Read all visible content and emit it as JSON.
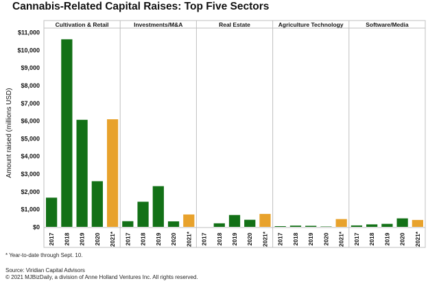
{
  "chart_data": {
    "type": "bar",
    "title": "Cannabis-Related Capital Raises: Top Five Sectors",
    "ylabel": "Amount raised (millions USD)",
    "ylim": [
      0,
      11000
    ],
    "yticks": [
      "$0",
      "$1,000",
      "$2,000",
      "$3,000",
      "$4,000",
      "$5,000",
      "$6,000",
      "$7,000",
      "$8,000",
      "$9,000",
      "$10,000",
      "$11,000"
    ],
    "categories": [
      "2017",
      "2018",
      "2019",
      "2020",
      "2021*"
    ],
    "grid": false,
    "colors": {
      "full_year": "#137117",
      "ytd": "#e8a22c"
    },
    "panels": [
      {
        "name": "Cultivation & Retail",
        "values": [
          1650,
          10600,
          6050,
          2580,
          6080
        ]
      },
      {
        "name": "Investments/M&A",
        "values": [
          320,
          1420,
          2300,
          310,
          700
        ]
      },
      {
        "name": "Real Estate",
        "values": [
          0,
          200,
          670,
          400,
          730
        ]
      },
      {
        "name": "Agriculture Technology",
        "values": [
          40,
          70,
          60,
          20,
          440
        ]
      },
      {
        "name": "Software/Media",
        "values": [
          80,
          140,
          170,
          480,
          390
        ]
      }
    ]
  },
  "footnote": "* Year-to-date through Sept. 10.",
  "source": "Source: Viridian Capital Advisors",
  "copyright": "© 2021 MJBizDaily, a division of Anne Holland Ventures Inc. All rights reserved."
}
